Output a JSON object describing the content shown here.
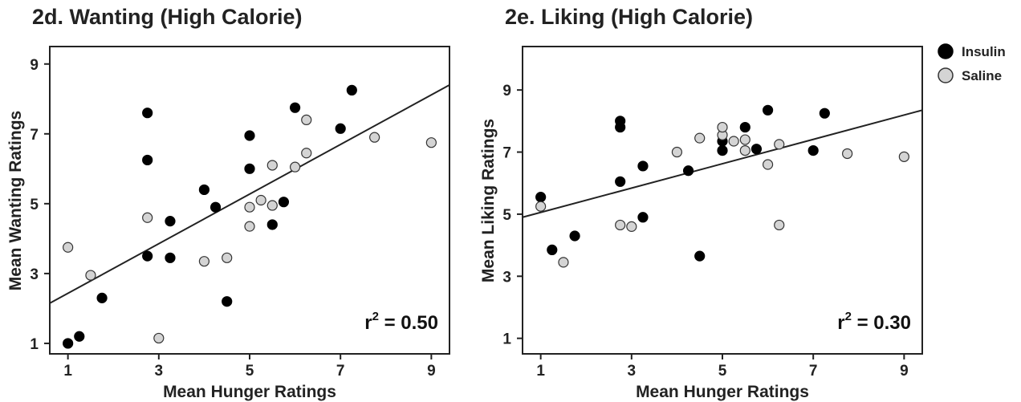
{
  "colors": {
    "insulin": "#000000",
    "saline": "#d4d4d4",
    "outline": "#333333",
    "axis": "#222222"
  },
  "legend": {
    "placement": "top-right",
    "items": [
      {
        "label": "Insulin",
        "color": "#000000"
      },
      {
        "label": "Saline",
        "color": "#d4d4d4"
      }
    ]
  },
  "chart_data": [
    {
      "type": "scatter",
      "title": "2d. Wanting (High Calorie)",
      "xlabel": "Mean Hunger Ratings",
      "ylabel": "Mean Wanting Ratings",
      "xlim": [
        0.6,
        9.4
      ],
      "ylim": [
        0.7,
        9.5
      ],
      "xticks": [
        "1",
        "3",
        "5",
        "7",
        "9"
      ],
      "yticks": [
        "1",
        "3",
        "5",
        "7",
        "9"
      ],
      "annotation": {
        "prefix": "r",
        "sup": "2",
        "suffix": " = 0.50"
      },
      "fit": {
        "x": [
          0.6,
          9.4
        ],
        "y": [
          2.15,
          8.4
        ]
      },
      "series": [
        {
          "name": "Insulin",
          "points": [
            [
              1.0,
              1.0
            ],
            [
              1.25,
              1.2
            ],
            [
              1.75,
              2.3
            ],
            [
              2.75,
              3.5
            ],
            [
              2.75,
              6.25
            ],
            [
              2.75,
              7.6
            ],
            [
              3.25,
              3.45
            ],
            [
              3.25,
              4.5
            ],
            [
              4.0,
              5.4
            ],
            [
              4.25,
              4.9
            ],
            [
              4.5,
              2.2
            ],
            [
              5.0,
              6.0
            ],
            [
              5.0,
              6.95
            ],
            [
              5.5,
              4.4
            ],
            [
              5.75,
              5.05
            ],
            [
              6.0,
              7.75
            ],
            [
              7.0,
              7.15
            ],
            [
              7.25,
              8.25
            ]
          ]
        },
        {
          "name": "Saline",
          "points": [
            [
              1.0,
              3.75
            ],
            [
              1.5,
              2.95
            ],
            [
              2.75,
              4.6
            ],
            [
              3.0,
              1.15
            ],
            [
              4.0,
              3.35
            ],
            [
              4.5,
              3.45
            ],
            [
              5.0,
              4.35
            ],
            [
              5.0,
              4.9
            ],
            [
              5.25,
              5.1
            ],
            [
              5.5,
              4.95
            ],
            [
              5.5,
              6.1
            ],
            [
              6.0,
              6.05
            ],
            [
              6.25,
              6.45
            ],
            [
              6.25,
              7.4
            ],
            [
              7.75,
              6.9
            ],
            [
              9.0,
              6.75
            ]
          ]
        }
      ]
    },
    {
      "type": "scatter",
      "title": "2e. Liking (High Calorie)",
      "xlabel": "Mean Hunger Ratings",
      "ylabel": "Mean Liking Ratings",
      "xlim": [
        0.6,
        9.4
      ],
      "ylim": [
        0.5,
        10.4
      ],
      "xticks": [
        "1",
        "3",
        "5",
        "7",
        "9"
      ],
      "yticks": [
        "1",
        "3",
        "5",
        "7",
        "9"
      ],
      "annotation": {
        "prefix": "r",
        "sup": "2",
        "suffix": " = 0.30"
      },
      "fit": {
        "x": [
          0.6,
          9.4
        ],
        "y": [
          4.9,
          8.35
        ]
      },
      "series": [
        {
          "name": "Insulin",
          "points": [
            [
              1.0,
              5.55
            ],
            [
              1.25,
              3.85
            ],
            [
              1.75,
              4.3
            ],
            [
              2.75,
              6.05
            ],
            [
              2.75,
              7.8
            ],
            [
              2.75,
              8.0
            ],
            [
              3.25,
              4.9
            ],
            [
              3.25,
              6.55
            ],
            [
              4.25,
              6.4
            ],
            [
              4.5,
              3.65
            ],
            [
              5.0,
              7.05
            ],
            [
              5.0,
              7.35
            ],
            [
              5.5,
              7.8
            ],
            [
              5.75,
              7.1
            ],
            [
              6.0,
              8.35
            ],
            [
              7.0,
              7.05
            ],
            [
              7.25,
              8.25
            ]
          ]
        },
        {
          "name": "Saline",
          "points": [
            [
              1.0,
              5.25
            ],
            [
              1.5,
              3.45
            ],
            [
              2.75,
              4.65
            ],
            [
              3.0,
              4.6
            ],
            [
              4.0,
              7.0
            ],
            [
              4.5,
              7.45
            ],
            [
              5.0,
              7.55
            ],
            [
              5.0,
              7.8
            ],
            [
              5.25,
              7.35
            ],
            [
              5.5,
              7.05
            ],
            [
              5.5,
              7.4
            ],
            [
              6.0,
              6.6
            ],
            [
              6.25,
              7.25
            ],
            [
              6.25,
              4.65
            ],
            [
              7.75,
              6.95
            ],
            [
              9.0,
              6.85
            ]
          ]
        }
      ]
    }
  ]
}
